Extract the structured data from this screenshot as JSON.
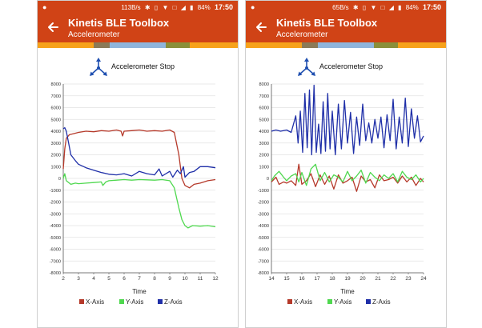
{
  "colors": {
    "brand": "#d04316",
    "x_axis": "#b5392a",
    "y_axis": "#4fd84f",
    "z_axis": "#1f2fa8",
    "strip": [
      "#f7a21b",
      "#8b7a58",
      "#8fb5dc",
      "#8a8f3a",
      "#f7a21b"
    ]
  },
  "screens": [
    {
      "status": {
        "speed": "113B/s",
        "icons": [
          "chat-bubble-icon",
          "bluetooth-icon",
          "vibrate-icon",
          "wifi-icon",
          "no-sim-icon",
          "signal-icon",
          "battery-icon"
        ],
        "battery": "84%",
        "time": "17:50"
      },
      "app_title": "Kinetis BLE Toolbox",
      "app_subtitle": "Accelerometer",
      "control_label": "Accelerometer Stop",
      "chart_data": {
        "type": "line",
        "xlabel": "Time",
        "xlim": [
          2,
          12
        ],
        "xticks": [
          2,
          3,
          4,
          5,
          6,
          7,
          8,
          9,
          10,
          11,
          12
        ],
        "ylim": [
          -8000,
          8000
        ],
        "yticks": [
          8000,
          7000,
          6000,
          5000,
          4000,
          3000,
          2000,
          1000,
          0,
          -1000,
          -2000,
          -3000,
          -4000,
          -5000,
          -6000,
          -7000,
          -8000
        ],
        "legend_position": "bottom",
        "series": [
          {
            "name": "X-Axis",
            "x": [
              2,
              2.1,
              2.2,
              2.4,
              2.7,
              3,
              3.5,
              4,
              4.5,
              5,
              5.5,
              5.8,
              5.9,
              6,
              6.5,
              7,
              7.5,
              8,
              8.5,
              9,
              9.3,
              9.6,
              9.8,
              10,
              10.3,
              10.6,
              11,
              11.5,
              12
            ],
            "y": [
              800,
              2500,
              3400,
              3700,
              3800,
              3900,
              4000,
              3950,
              4050,
              4000,
              4100,
              4000,
              3600,
              4000,
              4050,
              4100,
              4000,
              4050,
              4000,
              4100,
              3900,
              2000,
              0,
              -600,
              -800,
              -500,
              -400,
              -200,
              -100
            ]
          },
          {
            "name": "Y-Axis",
            "x": [
              2,
              2.1,
              2.2,
              2.3,
              2.5,
              2.8,
              3,
              3.5,
              4,
              4.5,
              4.6,
              4.8,
              5,
              5.5,
              6,
              6.5,
              7,
              7.5,
              8,
              8.5,
              9,
              9.3,
              9.6,
              9.8,
              10,
              10.2,
              10.5,
              11,
              11.5,
              12
            ],
            "y": [
              0,
              400,
              -200,
              -300,
              -500,
              -400,
              -450,
              -400,
              -350,
              -300,
              -600,
              -300,
              -200,
              -150,
              -100,
              -150,
              -100,
              -120,
              -150,
              -100,
              -200,
              -800,
              -2500,
              -3500,
              -4000,
              -4200,
              -4000,
              -4050,
              -4000,
              -4100
            ]
          },
          {
            "name": "Z-Axis",
            "x": [
              2,
              2.1,
              2.2,
              2.35,
              2.5,
              2.8,
              3,
              3.5,
              4,
              4.5,
              5,
              5.5,
              6,
              6.5,
              7,
              7.5,
              8,
              8.3,
              8.5,
              9,
              9.2,
              9.5,
              9.7,
              9.9,
              10,
              10.3,
              10.6,
              11,
              11.5,
              12
            ],
            "y": [
              4200,
              4300,
              4000,
              3000,
              2000,
              1500,
              1200,
              900,
              700,
              500,
              350,
              300,
              400,
              200,
              600,
              400,
              300,
              800,
              200,
              600,
              100,
              700,
              400,
              1000,
              100,
              500,
              600,
              1000,
              1000,
              900
            ]
          }
        ]
      }
    },
    {
      "status": {
        "speed": "65B/s",
        "icons": [
          "chat-bubble-icon",
          "bluetooth-icon",
          "vibrate-icon",
          "wifi-icon",
          "no-sim-icon",
          "signal-icon",
          "battery-icon"
        ],
        "battery": "84%",
        "time": "17:50"
      },
      "app_title": "Kinetis BLE Toolbox",
      "app_subtitle": "Accelerometer",
      "control_label": "Accelerometer Stop",
      "chart_data": {
        "type": "line",
        "xlabel": "Time",
        "xlim": [
          14,
          24
        ],
        "xticks": [
          14,
          15,
          16,
          17,
          18,
          19,
          20,
          21,
          22,
          23,
          24
        ],
        "ylim": [
          -8000,
          8000
        ],
        "yticks": [
          8000,
          7000,
          6000,
          5000,
          4000,
          3000,
          2000,
          1000,
          0,
          -1000,
          -2000,
          -3000,
          -4000,
          -5000,
          -6000,
          -7000,
          -8000
        ],
        "legend_position": "bottom",
        "series": [
          {
            "name": "X-Axis",
            "x": [
              14,
              14.3,
              14.5,
              14.8,
              15,
              15.3,
              15.6,
              15.8,
              16,
              16.3,
              16.6,
              16.9,
              17.2,
              17.5,
              17.8,
              18.1,
              18.4,
              18.7,
              19,
              19.3,
              19.6,
              19.9,
              20.2,
              20.5,
              20.8,
              21.1,
              21.4,
              21.7,
              22,
              22.3,
              22.6,
              22.9,
              23.2,
              23.5,
              23.8,
              24
            ],
            "y": [
              -300,
              100,
              -500,
              -300,
              -400,
              -200,
              -600,
              1200,
              -500,
              -200,
              400,
              -700,
              300,
              -500,
              200,
              -900,
              300,
              -400,
              -200,
              100,
              -1100,
              200,
              -300,
              -100,
              -800,
              300,
              -200,
              -100,
              100,
              -400,
              200,
              -300,
              100,
              -600,
              0,
              -300
            ]
          },
          {
            "name": "Y-Axis",
            "x": [
              14,
              14.2,
              14.5,
              14.8,
              15,
              15.3,
              15.6,
              15.8,
              16,
              16.3,
              16.6,
              16.9,
              17.2,
              17.5,
              17.8,
              18.1,
              18.4,
              18.7,
              19,
              19.3,
              19.6,
              19.9,
              20.2,
              20.5,
              20.8,
              21.1,
              21.4,
              21.7,
              22,
              22.3,
              22.6,
              22.9,
              23.2,
              23.5,
              23.8,
              24
            ],
            "y": [
              -200,
              200,
              600,
              100,
              -200,
              200,
              400,
              -300,
              500,
              -600,
              800,
              1200,
              -200,
              500,
              -300,
              300,
              100,
              -300,
              600,
              -200,
              200,
              700,
              -400,
              500,
              100,
              -200,
              300,
              0,
              400,
              -300,
              600,
              100,
              -100,
              300,
              -300,
              0
            ]
          },
          {
            "name": "Z-Axis",
            "x": [
              14,
              14.3,
              14.6,
              15,
              15.3,
              15.6,
              15.75,
              15.9,
              16.05,
              16.2,
              16.35,
              16.5,
              16.65,
              16.8,
              16.95,
              17.1,
              17.25,
              17.4,
              17.55,
              17.7,
              17.85,
              18,
              18.2,
              18.4,
              18.6,
              18.8,
              19,
              19.2,
              19.4,
              19.6,
              19.8,
              20,
              20.2,
              20.4,
              20.6,
              20.8,
              21,
              21.2,
              21.4,
              21.6,
              21.8,
              22,
              22.2,
              22.4,
              22.6,
              22.8,
              23,
              23.2,
              23.4,
              23.6,
              23.8,
              24
            ],
            "y": [
              4000,
              4100,
              4000,
              4100,
              3900,
              5300,
              3000,
              5700,
              2200,
              7200,
              2600,
              7500,
              2000,
              7900,
              2200,
              4600,
              2100,
              6500,
              2300,
              7200,
              2500,
              5700,
              2000,
              6300,
              2500,
              6600,
              3000,
              5600,
              2100,
              5200,
              2800,
              6300,
              3200,
              4700,
              3000,
              5000,
              3400,
              5200,
              2600,
              5400,
              3200,
              6700,
              2500,
              5200,
              3000,
              6800,
              2700,
              5900,
              3400,
              5300,
              3100,
              3600
            ]
          }
        ]
      }
    }
  ]
}
